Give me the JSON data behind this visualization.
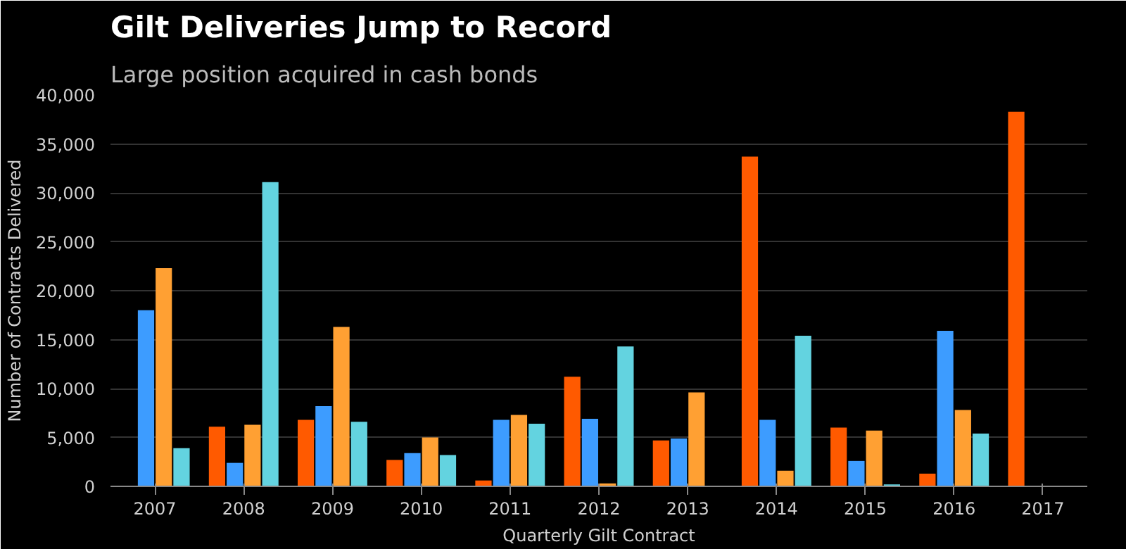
{
  "chart_data": {
    "type": "bar",
    "title": "Gilt Deliveries Jump to Record",
    "subtitle": "Large position acquired in cash bonds",
    "xlabel": "Quarterly Gilt Contract",
    "ylabel": "Number of Contracts Delivered",
    "categories": [
      "2007",
      "2008",
      "2009",
      "2010",
      "2011",
      "2012",
      "2013",
      "2014",
      "2015",
      "2016",
      "2017"
    ],
    "series": [
      {
        "color": "#ff5a00",
        "values": [
          0,
          6100,
          6800,
          2700,
          600,
          11200,
          4700,
          33700,
          6000,
          1300,
          38300
        ]
      },
      {
        "color": "#3d9cff",
        "values": [
          18000,
          2400,
          8200,
          3400,
          6800,
          6900,
          4900,
          6800,
          2600,
          15900,
          null
        ]
      },
      {
        "color": "#ffa033",
        "values": [
          22300,
          6300,
          16300,
          5000,
          7300,
          300,
          9600,
          1600,
          5700,
          7800,
          null
        ]
      },
      {
        "color": "#63d3e0",
        "values": [
          3900,
          31100,
          6600,
          3200,
          6400,
          14300,
          0,
          15400,
          200,
          5400,
          null
        ]
      }
    ],
    "ylim": [
      0,
      40000
    ],
    "yticks": [
      {
        "value": 0,
        "label": "0"
      },
      {
        "value": 5000,
        "label": "5,000"
      },
      {
        "value": 10000,
        "label": "10,000"
      },
      {
        "value": 15000,
        "label": "15,000"
      },
      {
        "value": 20000,
        "label": "20,000"
      },
      {
        "value": 25000,
        "label": "25,000"
      },
      {
        "value": 30000,
        "label": "30,000"
      },
      {
        "value": 35000,
        "label": "35,000"
      },
      {
        "value": 40000,
        "label": "40,000"
      }
    ],
    "grid": "y"
  }
}
